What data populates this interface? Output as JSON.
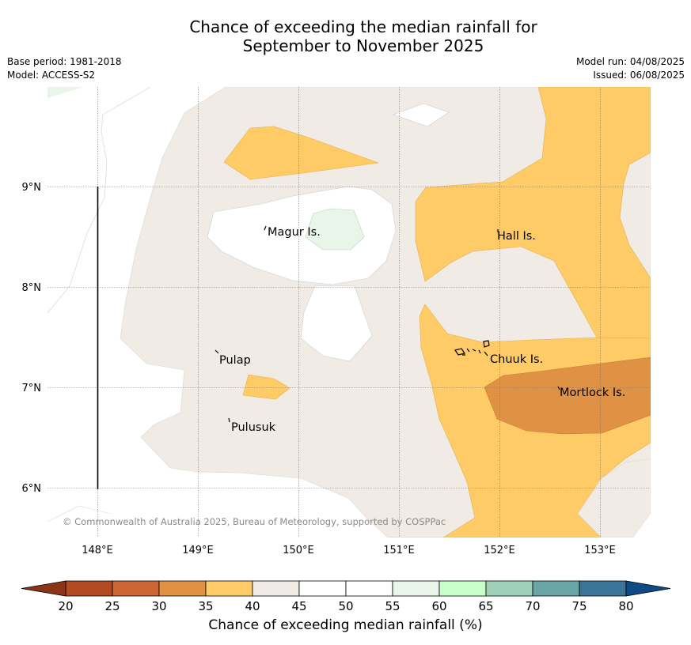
{
  "title": {
    "line1": "Chance of exceeding the median rainfall for",
    "line2": "September to November 2025"
  },
  "meta_left": {
    "base_period": "Base period: 1981-2018",
    "model": "Model: ACCESS-S2"
  },
  "meta_right": {
    "model_run": "Model run: 04/08/2025",
    "issued": "Issued: 06/08/2025"
  },
  "copyright": "© Commonwealth of Australia 2025, Bureau of Meteorology, supported by COSPPac",
  "map": {
    "x_ticks": [
      "148°E",
      "149°E",
      "150°E",
      "151°E",
      "152°E",
      "153°E"
    ],
    "y_ticks": [
      "9°N",
      "8°N",
      "7°N",
      "6°N"
    ],
    "places": [
      {
        "name": "Magur Is."
      },
      {
        "name": "Hall Is."
      },
      {
        "name": "Pulap"
      },
      {
        "name": "Chuuk Is."
      },
      {
        "name": "Mortlock Is."
      },
      {
        "name": "Pulusuk"
      }
    ]
  },
  "colorbar": {
    "title": "Chance of exceeding median rainfall (%)",
    "ticks": [
      "20",
      "25",
      "30",
      "35",
      "40",
      "45",
      "50",
      "55",
      "60",
      "65",
      "70",
      "75",
      "80"
    ],
    "low_extend_color": "#8b3418",
    "high_extend_color": "#0d4a86",
    "bins": [
      {
        "range": "20-25",
        "color": "#b24b22"
      },
      {
        "range": "25-30",
        "color": "#cc6633"
      },
      {
        "range": "30-35",
        "color": "#e09244"
      },
      {
        "range": "35-40",
        "color": "#ffcb66"
      },
      {
        "range": "40-45",
        "color": "#f0ebe4"
      },
      {
        "range": "45-50",
        "color": "#ffffff"
      },
      {
        "range": "50-55",
        "color": "#ffffff"
      },
      {
        "range": "55-60",
        "color": "#e9f5e9"
      },
      {
        "range": "60-65",
        "color": "#caffca"
      },
      {
        "range": "65-70",
        "color": "#9ed1b7"
      },
      {
        "range": "70-75",
        "color": "#6aa5a5"
      },
      {
        "range": "75-80",
        "color": "#3b7698"
      }
    ]
  }
}
